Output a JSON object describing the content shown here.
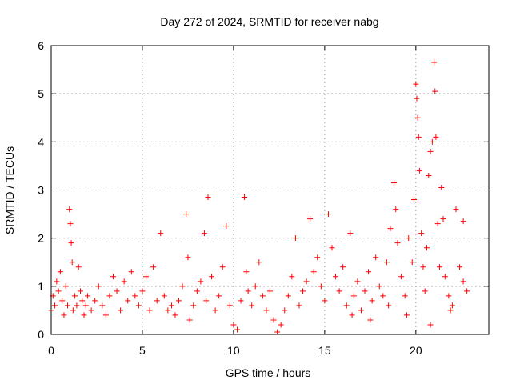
{
  "colors": {
    "series": "#ff0000",
    "grid": "#a0a0a0",
    "axis": "#000000",
    "background": "#ffffff"
  },
  "chart_data": {
    "type": "scatter",
    "title": "Day 272 of 2024, SRMTID for receiver nabg",
    "xlabel": "GPS time / hours",
    "ylabel": "SRMTID / TECUs",
    "xlim": [
      0,
      24
    ],
    "ylim": [
      0,
      6
    ],
    "xticks": [
      "0",
      "5",
      "10",
      "15",
      "20"
    ],
    "yticks": [
      "0",
      "1",
      "2",
      "3",
      "4",
      "5",
      "6"
    ],
    "grid": true,
    "marker": "+",
    "series": [
      {
        "name": "SRMTID",
        "points": [
          [
            0.0,
            0.5
          ],
          [
            0.1,
            0.8
          ],
          [
            0.2,
            0.6
          ],
          [
            0.3,
            1.1
          ],
          [
            0.4,
            0.9
          ],
          [
            0.5,
            1.3
          ],
          [
            0.6,
            0.7
          ],
          [
            0.7,
            0.4
          ],
          [
            0.8,
            1.0
          ],
          [
            0.9,
            0.6
          ],
          [
            1.0,
            2.6
          ],
          [
            1.05,
            2.3
          ],
          [
            1.1,
            1.9
          ],
          [
            1.15,
            1.5
          ],
          [
            1.2,
            0.5
          ],
          [
            1.3,
            0.8
          ],
          [
            1.4,
            0.6
          ],
          [
            1.5,
            1.4
          ],
          [
            1.6,
            0.9
          ],
          [
            1.7,
            0.7
          ],
          [
            1.8,
            0.4
          ],
          [
            1.9,
            0.6
          ],
          [
            2.0,
            0.8
          ],
          [
            2.2,
            0.5
          ],
          [
            2.4,
            0.7
          ],
          [
            2.6,
            1.0
          ],
          [
            2.8,
            0.6
          ],
          [
            3.0,
            0.4
          ],
          [
            3.2,
            0.8
          ],
          [
            3.4,
            1.2
          ],
          [
            3.6,
            0.9
          ],
          [
            3.8,
            0.5
          ],
          [
            4.0,
            1.1
          ],
          [
            4.2,
            0.7
          ],
          [
            4.4,
            1.3
          ],
          [
            4.6,
            0.8
          ],
          [
            4.8,
            0.6
          ],
          [
            5.0,
            0.9
          ],
          [
            5.2,
            1.2
          ],
          [
            5.4,
            0.5
          ],
          [
            5.6,
            1.4
          ],
          [
            5.8,
            0.7
          ],
          [
            6.0,
            2.1
          ],
          [
            6.2,
            0.8
          ],
          [
            6.4,
            0.5
          ],
          [
            6.6,
            0.6
          ],
          [
            6.8,
            0.4
          ],
          [
            7.0,
            0.7
          ],
          [
            7.2,
            1.0
          ],
          [
            7.4,
            2.5
          ],
          [
            7.5,
            1.6
          ],
          [
            7.6,
            0.3
          ],
          [
            7.8,
            0.6
          ],
          [
            8.0,
            0.9
          ],
          [
            8.2,
            1.1
          ],
          [
            8.4,
            2.1
          ],
          [
            8.5,
            0.7
          ],
          [
            8.6,
            2.85
          ],
          [
            8.8,
            1.2
          ],
          [
            9.0,
            0.5
          ],
          [
            9.2,
            0.8
          ],
          [
            9.4,
            1.4
          ],
          [
            9.6,
            2.25
          ],
          [
            9.8,
            0.6
          ],
          [
            10.0,
            0.2
          ],
          [
            10.2,
            0.1
          ],
          [
            10.4,
            0.7
          ],
          [
            10.6,
            2.85
          ],
          [
            10.7,
            1.3
          ],
          [
            10.8,
            0.9
          ],
          [
            11.0,
            0.6
          ],
          [
            11.2,
            1.0
          ],
          [
            11.4,
            1.5
          ],
          [
            11.6,
            0.8
          ],
          [
            11.8,
            0.5
          ],
          [
            12.0,
            0.9
          ],
          [
            12.2,
            0.3
          ],
          [
            12.4,
            0.05
          ],
          [
            12.6,
            0.2
          ],
          [
            12.8,
            0.5
          ],
          [
            13.0,
            0.8
          ],
          [
            13.2,
            1.2
          ],
          [
            13.4,
            2.0
          ],
          [
            13.6,
            0.6
          ],
          [
            13.8,
            0.9
          ],
          [
            14.0,
            1.1
          ],
          [
            14.2,
            2.4
          ],
          [
            14.4,
            1.3
          ],
          [
            14.6,
            1.6
          ],
          [
            14.8,
            1.0
          ],
          [
            15.0,
            0.7
          ],
          [
            15.2,
            2.5
          ],
          [
            15.4,
            1.8
          ],
          [
            15.6,
            1.2
          ],
          [
            15.8,
            0.9
          ],
          [
            16.0,
            1.4
          ],
          [
            16.2,
            0.6
          ],
          [
            16.4,
            2.1
          ],
          [
            16.6,
            0.8
          ],
          [
            16.8,
            1.1
          ],
          [
            17.0,
            0.5
          ],
          [
            17.2,
            0.9
          ],
          [
            17.4,
            1.3
          ],
          [
            17.6,
            0.7
          ],
          [
            17.8,
            1.6
          ],
          [
            18.0,
            1.0
          ],
          [
            18.2,
            0.8
          ],
          [
            18.4,
            1.5
          ],
          [
            18.6,
            2.2
          ],
          [
            18.8,
            3.15
          ],
          [
            18.9,
            2.6
          ],
          [
            19.0,
            1.9
          ],
          [
            19.2,
            1.2
          ],
          [
            19.4,
            0.8
          ],
          [
            19.6,
            2.0
          ],
          [
            19.8,
            1.5
          ],
          [
            19.9,
            2.8
          ],
          [
            20.0,
            5.2
          ],
          [
            20.05,
            4.9
          ],
          [
            20.1,
            4.5
          ],
          [
            20.15,
            4.1
          ],
          [
            20.2,
            3.4
          ],
          [
            20.3,
            2.1
          ],
          [
            20.4,
            1.4
          ],
          [
            20.5,
            0.9
          ],
          [
            20.6,
            1.8
          ],
          [
            20.7,
            3.3
          ],
          [
            20.8,
            3.8
          ],
          [
            20.9,
            4.0
          ],
          [
            21.0,
            5.65
          ],
          [
            21.05,
            5.05
          ],
          [
            21.1,
            4.1
          ],
          [
            21.2,
            2.3
          ],
          [
            21.3,
            1.4
          ],
          [
            21.4,
            3.05
          ],
          [
            21.5,
            2.4
          ],
          [
            21.6,
            1.2
          ],
          [
            21.8,
            0.8
          ],
          [
            22.0,
            0.6
          ],
          [
            22.2,
            2.6
          ],
          [
            22.4,
            1.4
          ],
          [
            22.6,
            2.35
          ],
          [
            22.8,
            0.9
          ],
          [
            22.6,
            1.1
          ],
          [
            21.9,
            0.5
          ],
          [
            20.8,
            0.2
          ],
          [
            19.5,
            0.4
          ],
          [
            18.5,
            0.6
          ],
          [
            17.5,
            0.3
          ],
          [
            16.5,
            0.4
          ]
        ]
      }
    ]
  }
}
